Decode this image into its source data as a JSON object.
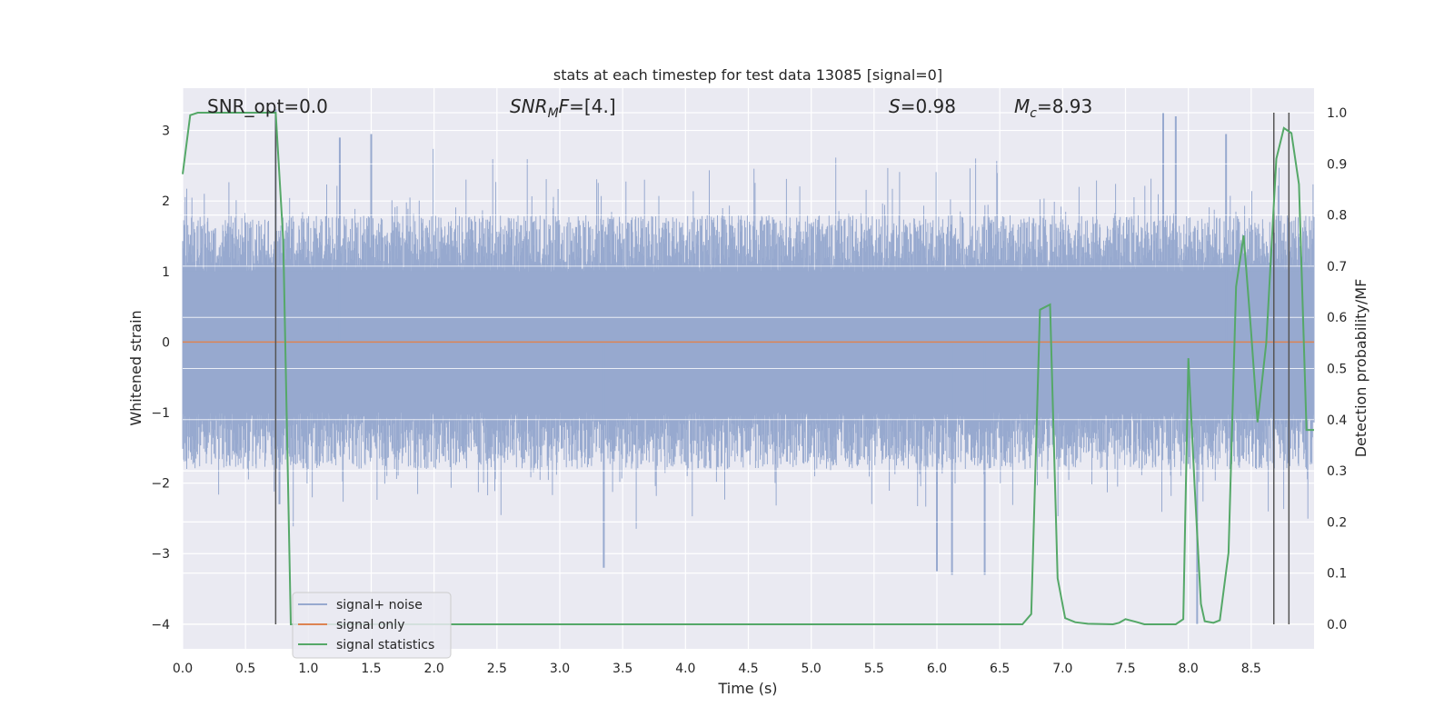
{
  "chart_data": {
    "type": "line",
    "title": "stats at each timestep for test data 13085 [signal=0]",
    "xlabel": "Time (s)",
    "ylabel_left": "Whitened strain",
    "ylabel_right": "Detection probability/MF",
    "xlim": [
      0.0,
      9.0
    ],
    "ylim_left": [
      -4.35,
      3.6
    ],
    "ylim_right": [
      -0.048,
      1.048
    ],
    "x_ticks": [
      "0.0",
      "0.5",
      "1.0",
      "1.5",
      "2.0",
      "2.5",
      "3.0",
      "3.5",
      "4.0",
      "4.5",
      "5.0",
      "5.5",
      "6.0",
      "6.5",
      "7.0",
      "7.5",
      "8.0",
      "8.5"
    ],
    "y_ticks_left": [
      "−4",
      "−3",
      "−2",
      "−1",
      "0",
      "1",
      "2",
      "3"
    ],
    "y_ticks_right": [
      "0.0",
      "0.1",
      "0.2",
      "0.3",
      "0.4",
      "0.5",
      "0.6",
      "0.7",
      "0.8",
      "0.9",
      "1.0"
    ],
    "grid": true,
    "annotations": {
      "snr_opt": "SNR_opt=0.0",
      "snr_mf": "=[4.]",
      "snr_mf_sym": "SNR",
      "snr_mf_sub": "M",
      "snr_mf_tail": "F",
      "spin_sym": "S",
      "spin": "=0.98",
      "mc_sym": "M",
      "mc_sub": "c",
      "mc": "=8.93"
    },
    "vertical_markers": [
      0.74,
      8.68,
      8.8
    ],
    "series": [
      {
        "name": "signal+ noise",
        "color": "#97a9cf",
        "description_values": "noise band roughly between -1.1 and 1.1 with spikes up to about 3.3 and down to about -4.0",
        "spikes": [
          [
            0.74,
            3.3
          ],
          [
            0.77,
            -2.3
          ],
          [
            1.25,
            2.9
          ],
          [
            1.5,
            2.95
          ],
          [
            3.35,
            -3.2
          ],
          [
            6.0,
            -3.25
          ],
          [
            6.12,
            -3.3
          ],
          [
            6.38,
            -3.3
          ],
          [
            7.8,
            3.25
          ],
          [
            7.9,
            3.2
          ],
          [
            8.07,
            -4.0
          ],
          [
            8.3,
            2.95
          ]
        ]
      },
      {
        "name": "signal only",
        "color": "#dd8452",
        "values_const": 0.0
      },
      {
        "name": "signal statistics",
        "color": "#55a868",
        "axis": "right",
        "points": [
          [
            0.0,
            0.88
          ],
          [
            0.06,
            0.995
          ],
          [
            0.12,
            1.0
          ],
          [
            0.7,
            1.0
          ],
          [
            0.74,
            1.0
          ],
          [
            0.8,
            0.75
          ],
          [
            0.86,
            0.0
          ],
          [
            6.68,
            0.0
          ],
          [
            6.75,
            0.02
          ],
          [
            6.82,
            0.615
          ],
          [
            6.9,
            0.625
          ],
          [
            6.96,
            0.09
          ],
          [
            7.02,
            0.012
          ],
          [
            7.1,
            0.004
          ],
          [
            7.2,
            0.001
          ],
          [
            7.4,
            0.0
          ],
          [
            7.45,
            0.003
          ],
          [
            7.5,
            0.01
          ],
          [
            7.58,
            0.005
          ],
          [
            7.65,
            0.0
          ],
          [
            7.9,
            0.0
          ],
          [
            7.96,
            0.01
          ],
          [
            8.0,
            0.52
          ],
          [
            8.05,
            0.27
          ],
          [
            8.1,
            0.04
          ],
          [
            8.13,
            0.006
          ],
          [
            8.2,
            0.003
          ],
          [
            8.25,
            0.008
          ],
          [
            8.32,
            0.14
          ],
          [
            8.38,
            0.66
          ],
          [
            8.44,
            0.76
          ],
          [
            8.5,
            0.57
          ],
          [
            8.55,
            0.395
          ],
          [
            8.62,
            0.55
          ],
          [
            8.7,
            0.91
          ],
          [
            8.76,
            0.97
          ],
          [
            8.82,
            0.96
          ],
          [
            8.88,
            0.86
          ],
          [
            8.94,
            0.38
          ],
          [
            9.0,
            0.38
          ]
        ]
      }
    ],
    "legend": {
      "placement": "lower-left",
      "entries": [
        "signal+ noise",
        "signal only",
        "signal statistics"
      ]
    }
  }
}
